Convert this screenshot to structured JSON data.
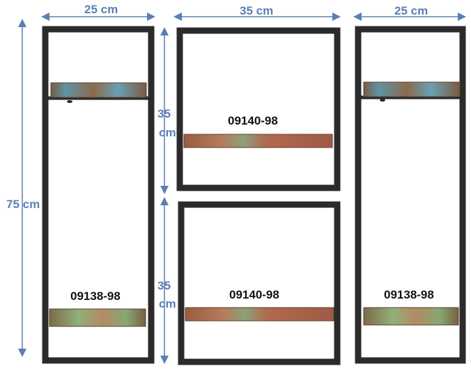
{
  "dimensions": {
    "left_width": "25 cm",
    "middle_width": "35 cm",
    "right_width": "25 cm",
    "total_height": "75 cm",
    "top_cube_height_line1": "35",
    "top_cube_height_line2": "cm",
    "bottom_cube_height_line1": "35",
    "bottom_cube_height_line2": "cm"
  },
  "product_codes": {
    "left_shelf": "09138-98",
    "middle_top_cube": "09140-98",
    "middle_bottom_cube": "09140-98",
    "right_shelf": "09138-98"
  },
  "colors": {
    "dimension_blue": "#5b7fb5",
    "frame_metal": "#2b2b2b",
    "wood_reclaimed_blue": "#6b9fae",
    "wood_reclaimed_red": "#a86a4e",
    "wood_reclaimed_green": "#8aa068"
  }
}
